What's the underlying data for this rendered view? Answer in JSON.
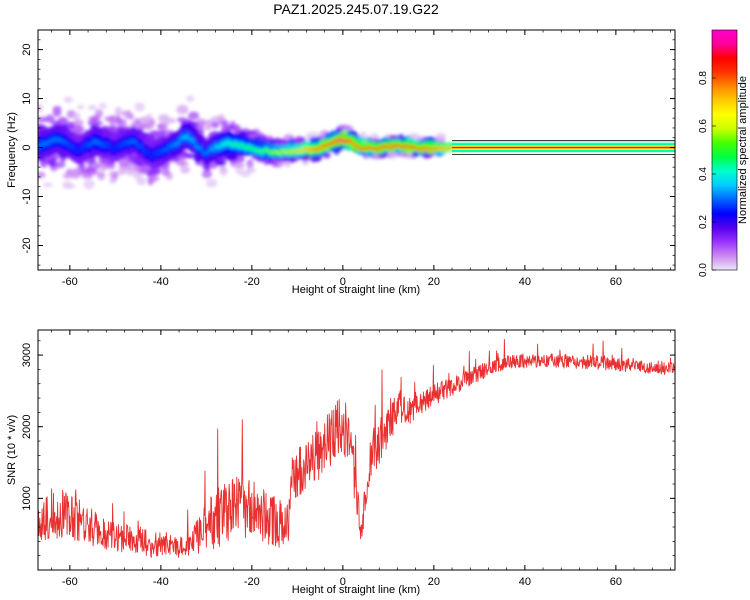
{
  "chart_data": [
    {
      "type": "heatmap",
      "title": "PAZ1.2025.245.07.19.G22",
      "xlabel": "Height of straight line (km)",
      "ylabel": "Frequency (Hz)",
      "xlim": [
        -67,
        73
      ],
      "ylim": [
        -25,
        24
      ],
      "x_ticks": [
        -60,
        -40,
        -20,
        0,
        20,
        40,
        60
      ],
      "y_ticks": [
        -20,
        -10,
        0,
        10,
        20
      ],
      "colorbar": {
        "label": "Normalized spectral amplitude",
        "range": [
          0,
          1
        ],
        "ticks": [
          0.0,
          0.2,
          0.4,
          0.6,
          0.8
        ],
        "colors": [
          "#ece6f7",
          "#cc88f0",
          "#9933ff",
          "#5500ee",
          "#0000ff",
          "#0066ff",
          "#00ccff",
          "#00ffcc",
          "#00ff44",
          "#44ff00",
          "#ccff00",
          "#ffff00",
          "#ffcc00",
          "#ff8800",
          "#ff3300",
          "#ff0000",
          "#ff0099",
          "#ff00cc"
        ]
      },
      "ridge": {
        "x": [
          -66,
          -62,
          -58,
          -54,
          -50,
          -46,
          -42,
          -38,
          -34,
          -30,
          -26,
          -22,
          -18,
          -14,
          -10,
          -6,
          -2,
          0,
          2,
          4,
          8,
          12,
          16,
          20,
          24,
          30,
          40,
          50,
          60,
          73
        ],
        "freq": [
          0.5,
          2.0,
          -0.5,
          1.5,
          0.0,
          1.5,
          -1.5,
          0.0,
          2.5,
          -1.0,
          1.0,
          0.5,
          -0.5,
          -0.8,
          -0.5,
          -0.3,
          1.0,
          1.8,
          1.2,
          0.0,
          0.0,
          0.5,
          0.0,
          0.0,
          0.0,
          0.0,
          0.0,
          0.0,
          0.0,
          0.0
        ],
        "amplitude": [
          0.3,
          0.3,
          0.25,
          0.3,
          0.25,
          0.3,
          0.25,
          0.3,
          0.35,
          0.3,
          0.4,
          0.45,
          0.5,
          0.6,
          0.7,
          0.85,
          0.9,
          0.95,
          0.9,
          0.9,
          0.9,
          0.92,
          0.9,
          0.85,
          0.8,
          0.75,
          0.75,
          0.75,
          0.75,
          0.75
        ],
        "spread": [
          3.5,
          3.5,
          3.5,
          3.5,
          3.5,
          3.0,
          3.5,
          3.0,
          3.0,
          3.0,
          2.5,
          2.0,
          1.5,
          1.2,
          1.0,
          1.0,
          1.0,
          1.2,
          1.0,
          0.8,
          0.8,
          0.8,
          0.8,
          0.8,
          0.7,
          0.7,
          0.7,
          0.7,
          0.7,
          0.7
        ]
      }
    },
    {
      "type": "line",
      "xlabel": "Height of straight line (km)",
      "ylabel": "SNR (10 * v/v)",
      "xlim": [
        -67,
        73
      ],
      "ylim": [
        0,
        3350
      ],
      "x_ticks": [
        -60,
        -40,
        -20,
        0,
        20,
        40,
        60
      ],
      "y_ticks": [
        1000,
        2000,
        3000
      ],
      "color": "#e83030",
      "x": [
        -67,
        -62,
        -58,
        -54,
        -50,
        -46,
        -42,
        -38,
        -34,
        -30,
        -26,
        -22,
        -18,
        -14,
        -12,
        -11,
        -8,
        -4,
        0,
        2,
        4,
        6,
        8,
        10,
        12,
        14,
        16,
        18,
        20,
        24,
        28,
        32,
        36,
        40,
        44,
        48,
        52,
        56,
        60,
        64,
        68,
        73
      ],
      "y": [
        700,
        800,
        700,
        550,
        450,
        450,
        350,
        350,
        300,
        600,
        800,
        900,
        800,
        650,
        600,
        1300,
        1450,
        1700,
        2100,
        1600,
        500,
        1600,
        1800,
        2000,
        2300,
        2200,
        2300,
        2350,
        2450,
        2550,
        2700,
        2800,
        2900,
        2920,
        2920,
        2920,
        2900,
        2900,
        2880,
        2860,
        2830,
        2800
      ],
      "noise": [
        300,
        350,
        300,
        250,
        200,
        200,
        180,
        180,
        150,
        350,
        450,
        450,
        400,
        350,
        300,
        350,
        350,
        400,
        450,
        400,
        150,
        350,
        350,
        300,
        250,
        200,
        180,
        160,
        150,
        130,
        120,
        110,
        100,
        100,
        100,
        100,
        100,
        100,
        100,
        100,
        100,
        100
      ]
    }
  ]
}
